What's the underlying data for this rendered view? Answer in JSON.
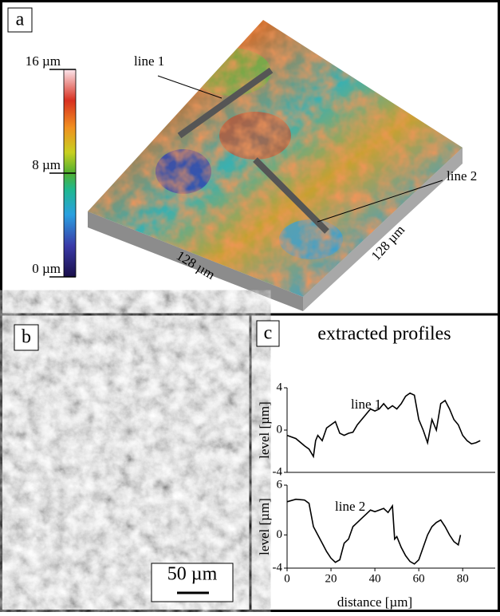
{
  "panel_a": {
    "label": "a",
    "colorbar": {
      "lim": [
        0,
        16
      ],
      "ticks": [
        {
          "value": 0,
          "label": "0 µm"
        },
        {
          "value": 8,
          "label": "8 µm"
        },
        {
          "value": 16,
          "label": "16 µm"
        }
      ]
    },
    "annotations": [
      "line 1",
      "line 2"
    ],
    "edge_labels": [
      "128 µm",
      "128 µm"
    ]
  },
  "panel_b": {
    "label": "b",
    "scale_bar": "50 µm"
  },
  "panel_c": {
    "label": "c",
    "title": "extracted profiles"
  },
  "chart_data": [
    {
      "type": "line",
      "annotation": "line 1",
      "ylabel": "level [µm]",
      "color": "#000000",
      "x": [
        0,
        4,
        8,
        10,
        12,
        13,
        14,
        16,
        18,
        20,
        22,
        24,
        26,
        28,
        30,
        32,
        34,
        36,
        38,
        40,
        42,
        44,
        46,
        48,
        50,
        52,
        54,
        56,
        58,
        60,
        62,
        64,
        66,
        68,
        70,
        72,
        74,
        76,
        78,
        80,
        82,
        84,
        86,
        88
      ],
      "values": [
        -0.5,
        -0.8,
        -1.5,
        -1.8,
        -2.5,
        -1,
        -0.5,
        -1,
        0.2,
        0.5,
        0.8,
        -0.3,
        -0.5,
        -0.3,
        -0.2,
        0.5,
        1,
        1.5,
        2,
        1.8,
        2,
        2.5,
        2,
        2.3,
        2,
        2.5,
        3.2,
        3.5,
        3.3,
        1,
        0,
        -1.2,
        1,
        0,
        2.5,
        2.8,
        2,
        1,
        0.5,
        -0.5,
        -1,
        -1.3,
        -1.2,
        -1
      ],
      "xlim": [
        0,
        97
      ],
      "ylim": [
        -4,
        4
      ],
      "yticks": [
        -4,
        0,
        4
      ]
    },
    {
      "type": "line",
      "annotation": "line 2",
      "ylabel": "level [µm]",
      "xlabel": "distance [µm]",
      "color": "#000000",
      "x": [
        0,
        4,
        8,
        10,
        12,
        14,
        16,
        18,
        20,
        22,
        24,
        26,
        28,
        30,
        32,
        34,
        36,
        38,
        40,
        42,
        44,
        46,
        48,
        49,
        50,
        52,
        54,
        56,
        58,
        60,
        62,
        64,
        66,
        68,
        70,
        72,
        74,
        76,
        78,
        79
      ],
      "values": [
        4,
        4.3,
        4.2,
        3.8,
        1,
        0,
        -1,
        -2,
        -2.8,
        -3.3,
        -3,
        -1,
        -0.5,
        1,
        1.5,
        2,
        2.5,
        3,
        2.8,
        3,
        3.2,
        2.7,
        3.5,
        -0.5,
        -0.2,
        -1.5,
        -2.5,
        -3.2,
        -3.5,
        -3,
        -1.5,
        0,
        1,
        1.5,
        1.8,
        1,
        0,
        -0.8,
        -1.2,
        0
      ],
      "xlim": [
        0,
        97
      ],
      "ylim": [
        -4,
        6
      ],
      "yticks": [
        -4,
        0,
        6
      ],
      "xticks": [
        0,
        20,
        40,
        60,
        80
      ]
    }
  ]
}
